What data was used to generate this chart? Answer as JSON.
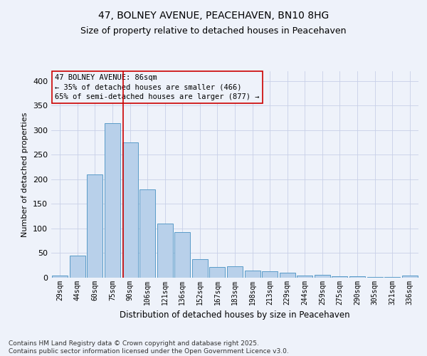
{
  "title_line1": "47, BOLNEY AVENUE, PEACEHAVEN, BN10 8HG",
  "title_line2": "Size of property relative to detached houses in Peacehaven",
  "xlabel": "Distribution of detached houses by size in Peacehaven",
  "ylabel": "Number of detached properties",
  "categories": [
    "29sqm",
    "44sqm",
    "60sqm",
    "75sqm",
    "90sqm",
    "106sqm",
    "121sqm",
    "136sqm",
    "152sqm",
    "167sqm",
    "183sqm",
    "198sqm",
    "213sqm",
    "229sqm",
    "244sqm",
    "259sqm",
    "275sqm",
    "290sqm",
    "305sqm",
    "321sqm",
    "336sqm"
  ],
  "values": [
    5,
    45,
    210,
    315,
    275,
    180,
    110,
    93,
    38,
    22,
    23,
    15,
    13,
    10,
    5,
    6,
    3,
    3,
    2,
    1,
    4
  ],
  "bar_color": "#b8d0ea",
  "bar_edge_color": "#5a9bc8",
  "annotation_text": "47 BOLNEY AVENUE: 86sqm\n← 35% of detached houses are smaller (466)\n65% of semi-detached houses are larger (877) →",
  "vline_color": "#cc0000",
  "annotation_box_edge": "#cc0000",
  "background_color": "#eef2fa",
  "footer_text": "Contains HM Land Registry data © Crown copyright and database right 2025.\nContains public sector information licensed under the Open Government Licence v3.0.",
  "ylim": [
    0,
    420
  ],
  "grid_color": "#c8d0e8",
  "title_fontsize": 10,
  "subtitle_fontsize": 9,
  "xlabel_fontsize": 8.5,
  "ylabel_fontsize": 8,
  "tick_fontsize": 7,
  "annotation_fontsize": 7.5,
  "footer_fontsize": 6.5
}
